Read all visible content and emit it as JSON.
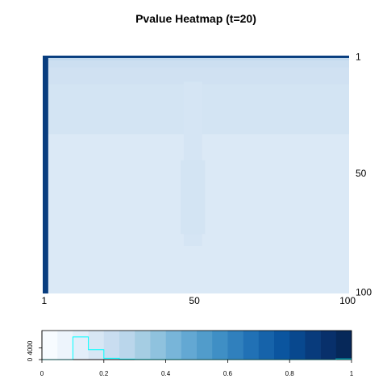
{
  "chart_data": [
    {
      "type": "heatmap",
      "title": "Pvalue Heatmap (t=20)",
      "xlabel": "",
      "ylabel": "",
      "x_range": [
        1,
        100
      ],
      "y_range": [
        1,
        100
      ],
      "x_ticks": [
        "1",
        "50",
        "100"
      ],
      "y_ticks": [
        "1",
        "50",
        "100"
      ],
      "y_axis_side": "right",
      "y_direction": "top-to-bottom",
      "colorscale": "Blues",
      "regions": [
        {
          "x": [
            1,
            100
          ],
          "y": [
            33,
            100
          ],
          "value": 0.14
        },
        {
          "x": [
            1,
            100
          ],
          "y": [
            1,
            33
          ],
          "value": 0.18
        },
        {
          "x": [
            1,
            100
          ],
          "y": [
            1,
            12
          ],
          "value": 0.2
        },
        {
          "x": [
            1,
            100
          ],
          "y": [
            1,
            5
          ],
          "value": 0.22
        },
        {
          "x": [
            1,
            100
          ],
          "y": [
            1,
            2
          ],
          "value": 0.26
        },
        {
          "x": [
            47,
            52
          ],
          "y": [
            12,
            80
          ],
          "value": 0.17
        },
        {
          "x": [
            46,
            53
          ],
          "y": [
            45,
            75
          ],
          "value": 0.18
        },
        {
          "x": [
            1,
            1.8
          ],
          "y": [
            1,
            100
          ],
          "value": 0.95
        },
        {
          "x": [
            1,
            100
          ],
          "y": [
            0,
            1
          ],
          "value": 0.95
        }
      ]
    },
    {
      "type": "bar",
      "subtype": "color-key-histogram",
      "x_range": [
        0,
        1
      ],
      "x_ticks": [
        "0",
        "0.2",
        "0.4",
        "0.6",
        "0.8",
        "1"
      ],
      "y_ticks": [
        "0",
        "4000"
      ],
      "y_range": [
        0,
        10000
      ],
      "bin_edges": [
        0,
        0.05,
        0.1,
        0.15,
        0.2,
        0.25,
        0.3,
        0.35,
        0.4,
        0.45,
        0.5,
        0.55,
        0.6,
        0.65,
        0.7,
        0.75,
        0.8,
        0.85,
        0.9,
        0.95,
        1.0
      ],
      "key_colors": [
        "#F7FBFF",
        "#EDF4FC",
        "#E3EEF9",
        "#D7E6F4",
        "#C9DDF0",
        "#BAD6EB",
        "#A5CDE3",
        "#8FC2DE",
        "#78B5D9",
        "#63A8D3",
        "#519CCB",
        "#3F8FC5",
        "#3080BD",
        "#2171B5",
        "#1663AA",
        "#0B559F",
        "#08488E",
        "#083B7C",
        "#08306B",
        "#062859"
      ],
      "counts": [
        0,
        0,
        7800,
        3400,
        450,
        180,
        80,
        40,
        20,
        10,
        5,
        5,
        5,
        5,
        5,
        5,
        5,
        5,
        5,
        200
      ],
      "line_color": "#00FFFF"
    }
  ]
}
